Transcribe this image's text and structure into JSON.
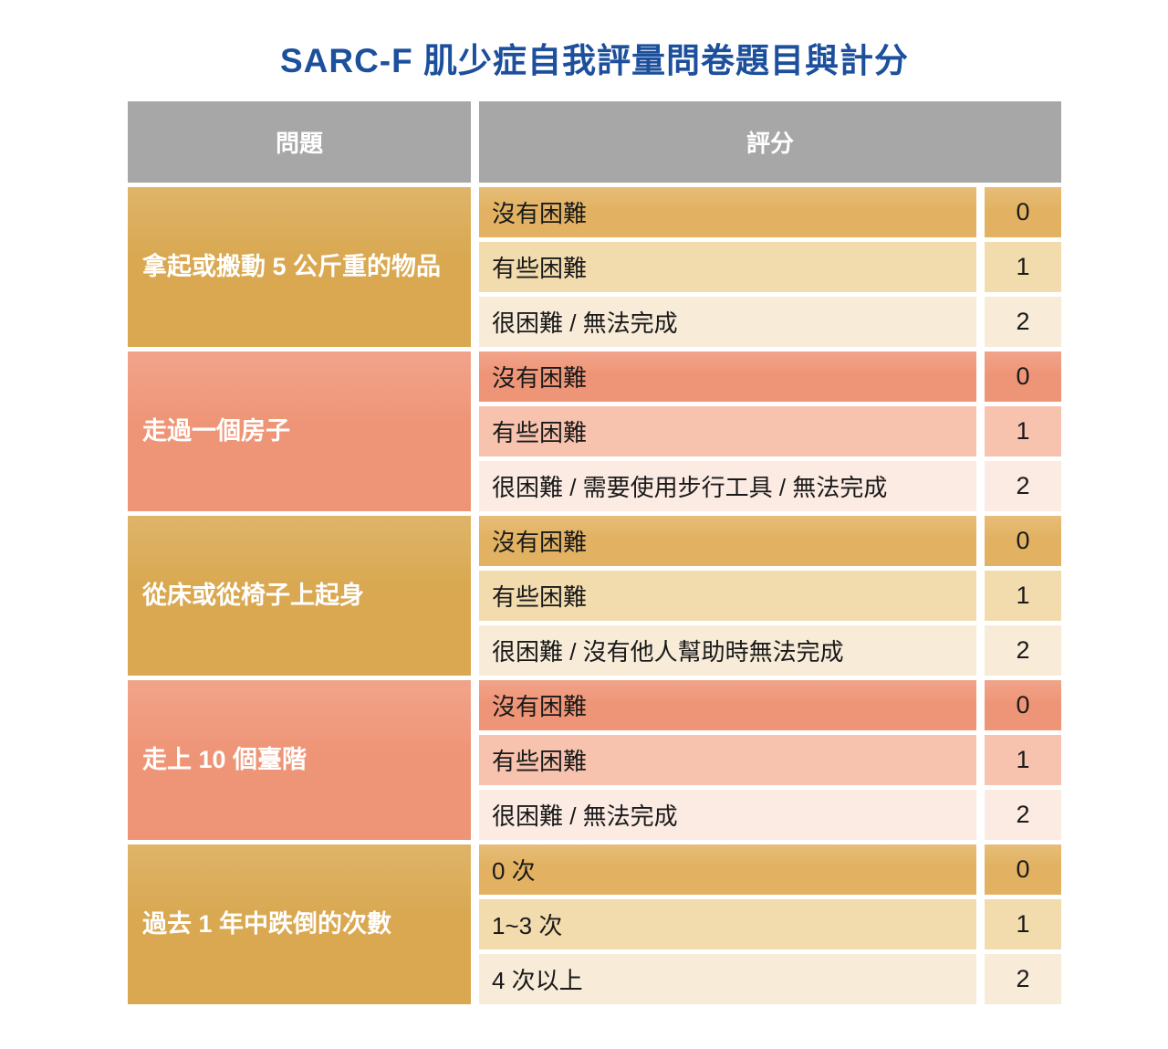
{
  "title": "SARC-F 肌少症自我評量問卷題目與計分",
  "colors": {
    "title_blue": "#1C4F9C",
    "header_gray": "#A7A7A7",
    "tan_dark": "#D9A851",
    "tan_option0": "#E2B262",
    "tan_option1": "#F2DCAE",
    "tan_option2": "#F8ECD9",
    "salmon_dark": "#EF9577",
    "salmon_option1": "#F7C3AE",
    "salmon_option2": "#FCEBE3"
  },
  "table": {
    "headers": {
      "question": "問題",
      "score": "評分"
    },
    "groups": [
      {
        "question": "拿起或搬動 5 公斤重的物品",
        "theme": "tan",
        "options": [
          {
            "label": "沒有困難",
            "score": "0"
          },
          {
            "label": "有些困難",
            "score": "1"
          },
          {
            "label": "很困難 / 無法完成",
            "score": "2"
          }
        ]
      },
      {
        "question": "走過一個房子",
        "theme": "salmon",
        "options": [
          {
            "label": "沒有困難",
            "score": "0"
          },
          {
            "label": "有些困難",
            "score": "1"
          },
          {
            "label": "很困難 / 需要使用步行工具 / 無法完成",
            "score": "2"
          }
        ]
      },
      {
        "question": "從床或從椅子上起身",
        "theme": "tan",
        "options": [
          {
            "label": "沒有困難",
            "score": "0"
          },
          {
            "label": "有些困難",
            "score": "1"
          },
          {
            "label": "很困難 / 沒有他人幫助時無法完成",
            "score": "2"
          }
        ]
      },
      {
        "question": "走上 10 個臺階",
        "theme": "salmon",
        "options": [
          {
            "label": "沒有困難",
            "score": "0"
          },
          {
            "label": "有些困難",
            "score": "1"
          },
          {
            "label": "很困難 / 無法完成",
            "score": "2"
          }
        ]
      },
      {
        "question": "過去 1 年中跌倒的次數",
        "theme": "tan",
        "options": [
          {
            "label": "0 次",
            "score": "0"
          },
          {
            "label": "1~3 次",
            "score": "1"
          },
          {
            "label": "4 次以上",
            "score": "2"
          }
        ]
      }
    ]
  }
}
